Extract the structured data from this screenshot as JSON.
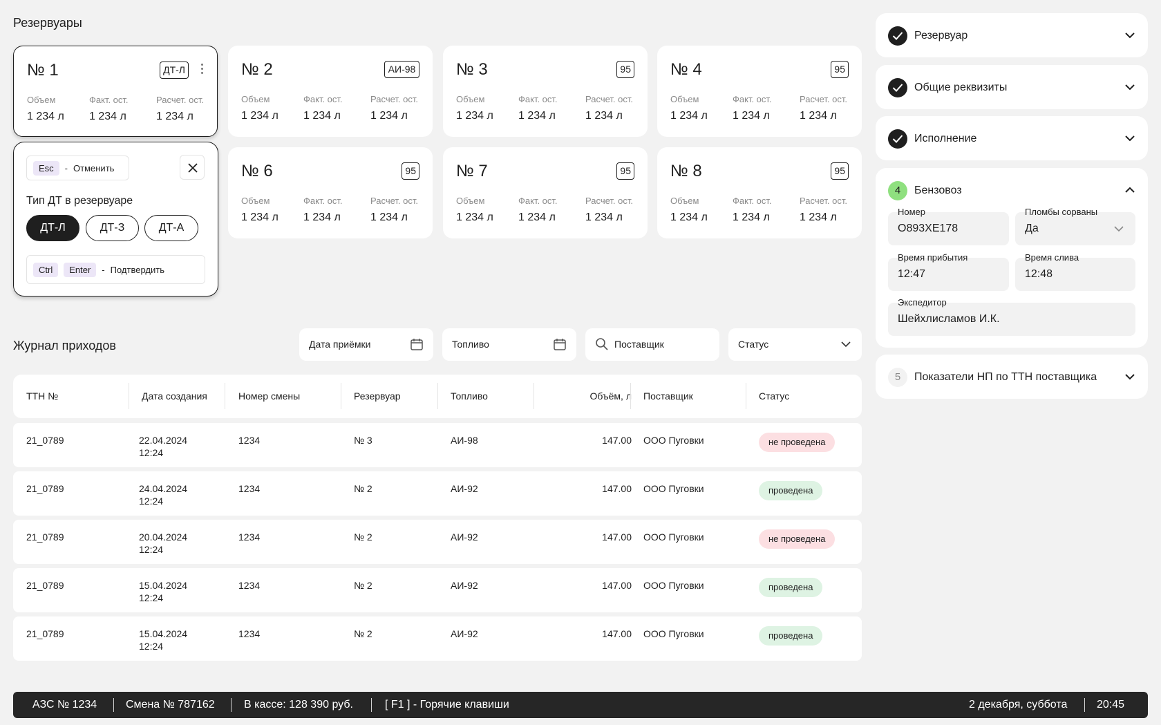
{
  "tanks": {
    "title": "Резервуары",
    "labels": {
      "volume": "Объем",
      "actual": "Факт. ост.",
      "calc": "Расчет. ост."
    },
    "items": [
      {
        "name": "№ 1",
        "fuel": "ДТ-Л",
        "volume": "1 234 л",
        "actual": "1 234 л",
        "calc": "1 234 л"
      },
      {
        "name": "№ 2",
        "fuel": "АИ-98",
        "volume": "1 234 л",
        "actual": "1 234 л",
        "calc": "1 234 л"
      },
      {
        "name": "№ 3",
        "fuel": "95",
        "volume": "1 234 л",
        "actual": "1 234 л",
        "calc": "1 234 л"
      },
      {
        "name": "№ 4",
        "fuel": "95",
        "volume": "1 234 л",
        "actual": "1 234 л",
        "calc": "1 234 л"
      },
      {
        "name": "№ 6",
        "fuel": "95",
        "volume": "1 234 л",
        "actual": "1 234 л",
        "calc": "1 234 л"
      },
      {
        "name": "№ 7",
        "fuel": "95",
        "volume": "1 234 л",
        "actual": "1 234 л",
        "calc": "1 234 л"
      },
      {
        "name": "№ 8",
        "fuel": "95",
        "volume": "1 234 л",
        "actual": "1 234 л",
        "calc": "1 234 л"
      }
    ]
  },
  "popover": {
    "cancel_key": "Esc",
    "dash": "-",
    "cancel_label": "Отменить",
    "title": "Тип ДТ в резервуаре",
    "options": [
      "ДТ-Л",
      "ДТ-З",
      "ДТ-А"
    ],
    "selected": "ДТ-Л",
    "confirm_key1": "Ctrl",
    "confirm_key2": "Enter",
    "confirm_label": "Подтвердить"
  },
  "journal": {
    "title": "Журнал приходов",
    "filters": {
      "date": "Дата приёмки",
      "fuel": "Топливо",
      "supplier": "Поставщик",
      "status": "Статус"
    },
    "columns": [
      "ТТН №",
      "Дата создания",
      "Номер смены",
      "Резервуар",
      "Топливо",
      "Объём, л",
      "Поставщик",
      "Статус"
    ],
    "rows": [
      {
        "ttn": "21_0789",
        "date": "22.04.2024",
        "time": "12:24",
        "shift": "1234",
        "tank": "№ 3",
        "fuel": "АИ-98",
        "volume": "147.00",
        "supplier": "ООО Пуговки",
        "status": "не проведена",
        "ok": false
      },
      {
        "ttn": "21_0789",
        "date": "24.04.2024",
        "time": "12:24",
        "shift": "1234",
        "tank": "№ 2",
        "fuel": "АИ-92",
        "volume": "147.00",
        "supplier": "ООО Пуговки",
        "status": "проведена",
        "ok": true
      },
      {
        "ttn": "21_0789",
        "date": "20.04.2024",
        "time": "12:24",
        "shift": "1234",
        "tank": "№ 2",
        "fuel": "АИ-92",
        "volume": "147.00",
        "supplier": "ООО Пуговки",
        "status": "не проведена",
        "ok": false
      },
      {
        "ttn": "21_0789",
        "date": "15.04.2024",
        "time": "12:24",
        "shift": "1234",
        "tank": "№ 2",
        "fuel": "АИ-92",
        "volume": "147.00",
        "supplier": "ООО Пуговки",
        "status": "проведена",
        "ok": true
      },
      {
        "ttn": "21_0789",
        "date": "15.04.2024",
        "time": "12:24",
        "shift": "1234",
        "tank": "№ 2",
        "fuel": "АИ-92",
        "volume": "147.00",
        "supplier": "ООО Пуговки",
        "status": "проведена",
        "ok": true
      }
    ]
  },
  "panel": {
    "sections": [
      {
        "label": "Резервуар",
        "state": "done"
      },
      {
        "label": "Общие реквизиты",
        "state": "done"
      },
      {
        "label": "Исполнение",
        "state": "done"
      },
      {
        "label": "Бензовоз",
        "state": "active",
        "number": "4"
      },
      {
        "label": "Показатели НП по ТТН поставщика",
        "state": "pending",
        "number": "5"
      }
    ],
    "truck": {
      "number_label": "Номер",
      "number_value": "О893ХЕ178",
      "seals_label": "Пломбы сорваны",
      "seals_value": "Да",
      "arrival_label": "Время прибытия",
      "arrival_value": "12:47",
      "drain_label": "Время слива",
      "drain_value": "12:48",
      "forwarder_label": "Экспедитор",
      "forwarder_value": "Шейхлисламов И.К."
    }
  },
  "statusbar": {
    "station": "АЗС № 1234",
    "shift": "Смена № 787162",
    "cash": "В кассе: 128 390 руб.",
    "hotkeys": "[ F1 ] - Горячие клавиши",
    "date": "2 декабря, суббота",
    "time": "20:45"
  },
  "colors": {
    "background": "#f2f2f2",
    "card": "#ffffff",
    "text": "#1f1f1f",
    "status_bad_bg": "#fcdfe2",
    "status_ok_bg": "#def3e3",
    "active_step": "#8fe07f",
    "kbd_bg": "#ece6f7",
    "statusbar_bg": "#262626"
  }
}
